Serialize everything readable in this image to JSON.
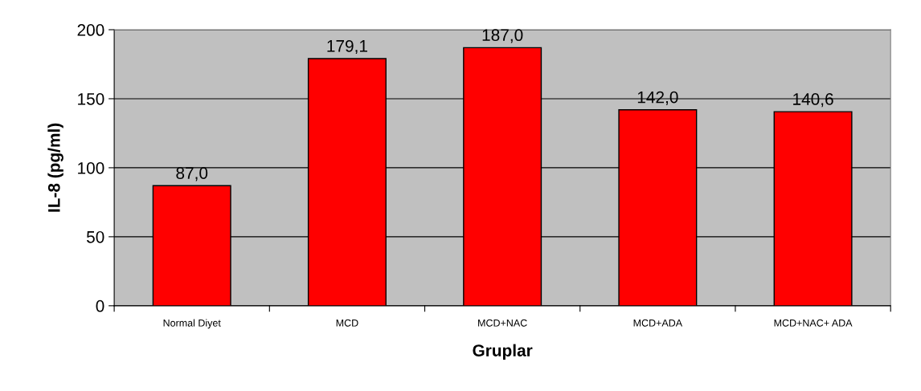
{
  "chart_data": {
    "type": "bar",
    "xlabel": "Gruplar",
    "ylabel": "IL-8 (pg/ml)",
    "categories": [
      "Normal Diyet",
      "MCD",
      "MCD+NAC",
      "MCD+ADA",
      "MCD+NAC+ ADA"
    ],
    "values": [
      87.0,
      179.1,
      187.0,
      142.0,
      140.6
    ],
    "value_labels": [
      "87,0",
      "179,1",
      "187,0",
      "142,0",
      "140,6"
    ],
    "color": "#ff0000",
    "ylim": [
      0,
      200
    ],
    "yticks": [
      0,
      50,
      100,
      150,
      200
    ],
    "grid": "y",
    "legend": false
  }
}
